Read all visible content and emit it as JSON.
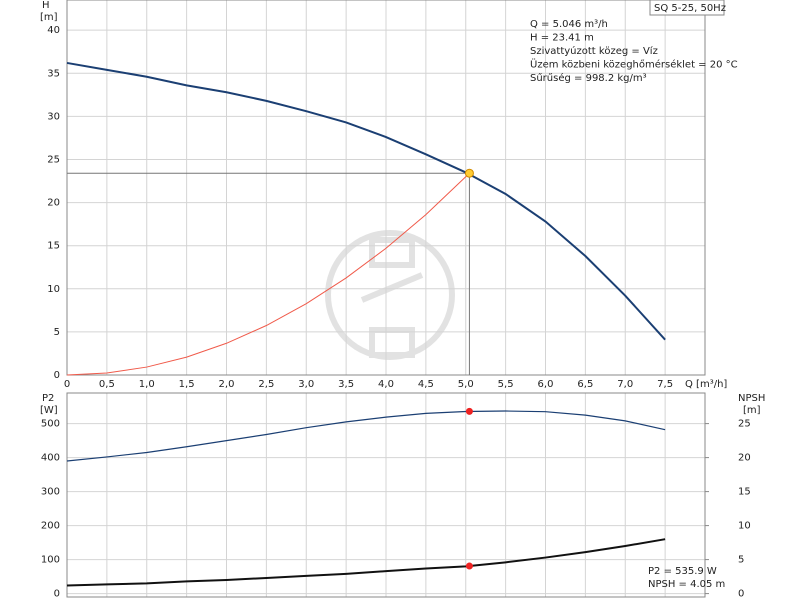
{
  "chart_data": [
    {
      "type": "line",
      "y_label": "H",
      "y_unit": "[m]",
      "x_label": "Q [m³/h]",
      "model": "SQ 5-25, 50Hz",
      "annotations": [
        "Q = 5.046 m³/h",
        "H = 23.41 m",
        "Szivattyúzott közeg = Víz",
        "Üzem közbeni közeghőmérséklet = 20 °C",
        "Sűrűség = 998.2 kg/m³"
      ],
      "xlim": [
        0,
        8
      ],
      "ylim": [
        0,
        43.5
      ],
      "xticks": [
        0,
        {
          "value": 0.5,
          "label": "0,5"
        },
        {
          "value": 1,
          "label": "1,0"
        },
        {
          "value": 1.5,
          "label": "1,5"
        },
        {
          "value": 2,
          "label": "2,0"
        },
        {
          "value": 2.5,
          "label": "2,5"
        },
        {
          "value": 3,
          "label": "3,0"
        },
        {
          "value": 3.5,
          "label": "3,5"
        },
        {
          "value": 4,
          "label": "4,0"
        },
        {
          "value": 4.5,
          "label": "4,5"
        },
        {
          "value": 5,
          "label": "5,0"
        },
        {
          "value": 5.5,
          "label": "5,5"
        },
        {
          "value": 6,
          "label": "6,0"
        },
        {
          "value": 6.5,
          "label": "6,5"
        },
        {
          "value": 7,
          "label": "7,0"
        },
        {
          "value": 7.5,
          "label": "7,5"
        }
      ],
      "yticks": [
        0,
        5,
        10,
        15,
        20,
        25,
        30,
        35,
        40
      ],
      "grid": true,
      "series": [
        {
          "color": "#1b3f73",
          "width": 2,
          "x": [
            0,
            0.5,
            1,
            1.5,
            2,
            2.5,
            3,
            3.5,
            4,
            4.5,
            5,
            5.5,
            6,
            6.5,
            7,
            7.5
          ],
          "values": [
            36.2,
            35.4,
            34.6,
            33.6,
            32.8,
            31.8,
            30.6,
            29.3,
            27.6,
            25.6,
            23.5,
            21.0,
            17.8,
            13.8,
            9.2,
            4.1
          ]
        },
        {
          "color": "#f05a4a",
          "width": 1,
          "x": [
            0,
            0.5,
            1,
            1.5,
            2,
            2.5,
            3,
            3.5,
            4,
            4.5,
            5,
            5.046
          ],
          "values": [
            0,
            0.23,
            0.92,
            2.07,
            3.68,
            5.74,
            8.27,
            11.26,
            14.7,
            18.6,
            23.0,
            23.41
          ]
        }
      ],
      "operating_point": {
        "x": 5.046,
        "y": 23.41,
        "color": "#ffcc33"
      }
    },
    {
      "type": "line",
      "y_label": "P2",
      "y_unit": "[W]",
      "y2_label": "NPSH",
      "y2_unit": "[m]",
      "annotations": [
        "P2 = 535.9 W",
        "NPSH = 4.05 m"
      ],
      "xlim": [
        0,
        8
      ],
      "ylim": [
        -10,
        590
      ],
      "y2lim": [
        -0.5,
        29.5
      ],
      "xticks": [
        0,
        0.5,
        1,
        1.5,
        2,
        2.5,
        3,
        3.5,
        4,
        4.5,
        5,
        5.5,
        6,
        6.5,
        7,
        7.5
      ],
      "yticks": [
        0,
        100,
        200,
        300,
        400,
        500
      ],
      "y2ticks": [
        0,
        5,
        10,
        15,
        20,
        25
      ],
      "grid": true,
      "series": [
        {
          "color": "#1b3f73",
          "width": 1.2,
          "axis": "y",
          "x": [
            0,
            0.5,
            1,
            1.5,
            2,
            2.5,
            3,
            3.5,
            4,
            4.5,
            5,
            5.5,
            6,
            6.5,
            7,
            7.5
          ],
          "values": [
            390,
            402,
            415,
            432,
            450,
            468,
            488,
            505,
            519,
            530,
            535.5,
            537,
            535,
            525,
            508,
            482
          ]
        },
        {
          "color": "#111111",
          "width": 2,
          "axis": "y2",
          "x": [
            0,
            0.5,
            1,
            1.5,
            2,
            2.5,
            3,
            3.5,
            4,
            4.5,
            5,
            5.5,
            6,
            6.5,
            7,
            7.5
          ],
          "values": [
            1.2,
            1.35,
            1.5,
            1.8,
            2.0,
            2.3,
            2.6,
            2.9,
            3.3,
            3.7,
            4.0,
            4.6,
            5.3,
            6.1,
            7.0,
            8.0
          ]
        }
      ],
      "markers": [
        {
          "x": 5.046,
          "y": 535.9,
          "axis": "y",
          "color": "#ee2222"
        },
        {
          "x": 5.046,
          "y": 4.05,
          "axis": "y2",
          "color": "#ee2222"
        }
      ]
    }
  ]
}
